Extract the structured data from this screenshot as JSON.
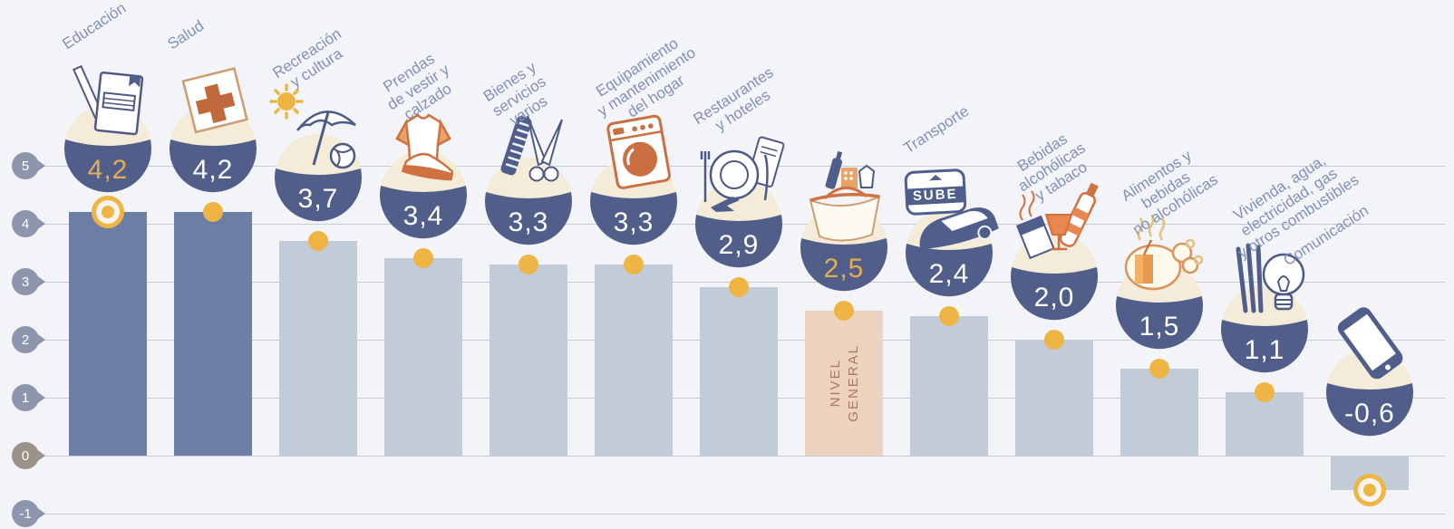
{
  "colors": {
    "background": "#f3f4f7",
    "gridline": "#c6c9d3",
    "axis_tick": "#8e96ad",
    "axis_tick_zero": "#9b9389",
    "bar_dark": "#6d7ea4",
    "bar_light": "#c2cbd8",
    "bar_accent": "#eed2c0",
    "accent_bar_text": "#a87a5e",
    "bubble_bg": "#f4ebd8",
    "bubble_bowl": "#515e8a",
    "value_white": "#ffffff",
    "value_gold": "#e2ae52",
    "dot": "#eeb545",
    "label_text": "#8091b8"
  },
  "axis": {
    "ticks": [
      {
        "label": "5",
        "value": 5,
        "color": "#8e96ad"
      },
      {
        "label": "4",
        "value": 4,
        "color": "#8e96ad"
      },
      {
        "label": "3",
        "value": 3,
        "color": "#8e96ad"
      },
      {
        "label": "2",
        "value": 2,
        "color": "#8e96ad"
      },
      {
        "label": "1",
        "value": 1,
        "color": "#8e96ad"
      },
      {
        "label": "0",
        "value": 0,
        "color": "#9b9389"
      },
      {
        "label": "-1",
        "value": -1,
        "color": "#8e96ad"
      }
    ]
  },
  "chart_data": {
    "type": "bar",
    "title": "",
    "categories": [
      "Educación",
      "Salud",
      "Recreación y cultura",
      "Prendas de vestir y calzado",
      "Bienes y servicios varios",
      "Equipamiento y mantenimiento del hogar",
      "Restaurantes y hoteles",
      "Nivel general",
      "Transporte",
      "Bebidas alcohólicas y tabaco",
      "Alimentos y bebidas no alcohólicas",
      "Vivienda, agua, electricidad, gas y otros combustibles",
      "Comunicación"
    ],
    "values": [
      4.2,
      4.2,
      3.7,
      3.4,
      3.3,
      3.3,
      2.9,
      2.5,
      2.4,
      2.0,
      1.5,
      1.1,
      -0.6
    ],
    "value_labels": [
      "4,2",
      "4,2",
      "3,7",
      "3,4",
      "3,3",
      "3,3",
      "2,9",
      "2,5",
      "2,4",
      "2,0",
      "1,5",
      "1,1",
      "-0,6"
    ],
    "xlabel": "",
    "ylabel": "",
    "ylim": [
      -1,
      5
    ],
    "yticks": [
      5,
      4,
      3,
      2,
      1,
      0,
      -1
    ],
    "grid": true,
    "legend": false,
    "highlighted_category": "Nivel general",
    "highlighted_value": 2.5
  },
  "columns": [
    {
      "id": "educacion",
      "label_lines": [
        "Educación"
      ],
      "value": 4.2,
      "value_label": "4,2",
      "value_color": "#e2ae52",
      "bar": "dark",
      "marker": "target-ring",
      "icon_name": "notebook-pencil-icon"
    },
    {
      "id": "salud",
      "label_lines": [
        "Salud"
      ],
      "value": 4.2,
      "value_label": "4,2",
      "value_color": "#ffffff",
      "bar": "dark",
      "marker": "dot",
      "icon_name": "first-aid-kit-icon"
    },
    {
      "id": "recreacion",
      "label_lines": [
        "Recreación",
        "y cultura"
      ],
      "value": 3.7,
      "value_label": "3,7",
      "value_color": "#ffffff",
      "bar": "light",
      "marker": "dot",
      "icon_name": "sun-umbrella-ball-icon"
    },
    {
      "id": "prendas",
      "label_lines": [
        "Prendas",
        "de vestir y",
        "calzado"
      ],
      "value": 3.4,
      "value_label": "3,4",
      "value_color": "#ffffff",
      "bar": "light",
      "marker": "dot",
      "icon_name": "tshirt-sneaker-icon"
    },
    {
      "id": "bienes",
      "label_lines": [
        "Bienes y",
        "servicios",
        "varios"
      ],
      "value": 3.3,
      "value_label": "3,3",
      "value_color": "#ffffff",
      "bar": "light",
      "marker": "dot",
      "icon_name": "comb-scissors-icon"
    },
    {
      "id": "equipamiento",
      "label_lines": [
        "Equipamiento",
        "y mantenimiento",
        "del hogar"
      ],
      "value": 3.3,
      "value_label": "3,3",
      "value_color": "#ffffff",
      "bar": "light",
      "marker": "dot",
      "icon_name": "washing-machine-icon"
    },
    {
      "id": "restaurantes",
      "label_lines": [
        "Restaurantes",
        "y hoteles"
      ],
      "value": 2.9,
      "value_label": "2,9",
      "value_color": "#ffffff",
      "bar": "light",
      "marker": "dot",
      "icon_name": "plate-cutlery-plane-icon"
    },
    {
      "id": "nivel-general",
      "label_lines": [],
      "in_bar_label_lines": [
        "NIVEL",
        "GENERAL"
      ],
      "value": 2.5,
      "value_label": "2,5",
      "value_color": "#e2ae52",
      "bar": "accent",
      "marker": "dot",
      "icon_name": "shopping-basket-icon"
    },
    {
      "id": "transporte",
      "label_lines": [
        "Transporte"
      ],
      "value": 2.4,
      "value_label": "2,4",
      "value_color": "#ffffff",
      "bar": "light",
      "marker": "dot",
      "icon_name": "sube-card-car-icon",
      "badge_label": "SUBE"
    },
    {
      "id": "bebidas",
      "label_lines": [
        "Bebidas",
        "alcohólicas",
        "y tabaco"
      ],
      "value": 2.0,
      "value_label": "2,0",
      "value_color": "#ffffff",
      "bar": "light",
      "marker": "dot",
      "icon_name": "cigarettes-wine-bottle-icon"
    },
    {
      "id": "alimentos",
      "label_lines": [
        "Alimentos y",
        "bebidas",
        "no alcohólicas"
      ],
      "value": 1.5,
      "value_label": "1,5",
      "value_color": "#ffffff",
      "bar": "light",
      "marker": "dot",
      "icon_name": "roast-chicken-drink-icon"
    },
    {
      "id": "vivienda",
      "label_lines": [
        "Vivienda, agua,",
        "electricidad, gas",
        "y otros combustibles"
      ],
      "value": 1.1,
      "value_label": "1,1",
      "value_color": "#ffffff",
      "bar": "light",
      "marker": "dot",
      "icon_name": "light-bulb-utensils-icon"
    },
    {
      "id": "comunicacion",
      "label_lines": [
        "Comunicación"
      ],
      "value": -0.6,
      "value_label": "-0,6",
      "value_color": "#ffffff",
      "bar": "light",
      "marker": "target-ring-bottom",
      "icon_name": "smartphone-icon"
    }
  ]
}
